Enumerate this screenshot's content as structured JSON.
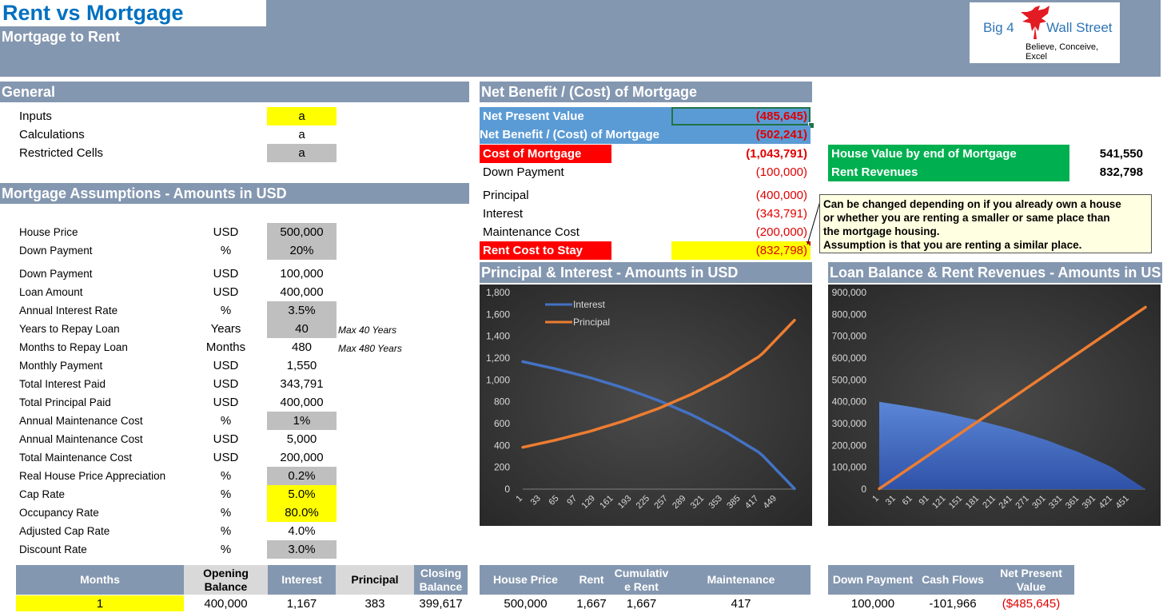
{
  "header": {
    "title": "Rent vs Mortgage",
    "subtitle": "Mortgage to Rent"
  },
  "logo": {
    "line1_left": "Big 4",
    "line1_right": "Wall Street",
    "tagline": "Believe, Conceive, Excel",
    "icon": "eagle-icon"
  },
  "general": {
    "title": "General",
    "legend": [
      {
        "label": "Inputs",
        "value": "a",
        "style": "yellow"
      },
      {
        "label": "Calculations",
        "value": "a",
        "style": "plain"
      },
      {
        "label": "Restricted Cells",
        "value": "a",
        "style": "gray"
      }
    ]
  },
  "assumptions": {
    "title": "Mortgage Assumptions - Amounts in USD",
    "rows": [
      {
        "label": "House Price",
        "unit": "USD",
        "value": "500,000",
        "style": "gray",
        "note": ""
      },
      {
        "label": "Down Payment",
        "unit": "%",
        "value": "20%",
        "style": "gray",
        "note": ""
      },
      {
        "label": "Down Payment",
        "unit": "USD",
        "value": "100,000",
        "style": "plain",
        "note": ""
      },
      {
        "label": "Loan Amount",
        "unit": "USD",
        "value": "400,000",
        "style": "plain",
        "note": ""
      },
      {
        "label": "Annual Interest Rate",
        "unit": "%",
        "value": "3.5%",
        "style": "gray",
        "note": ""
      },
      {
        "label": "Years to Repay Loan",
        "unit": "Years",
        "value": "40",
        "style": "gray",
        "note": "Max 40 Years"
      },
      {
        "label": "Months to Repay Loan",
        "unit": "Months",
        "value": "480",
        "style": "plain",
        "note": "Max 480 Years"
      },
      {
        "label": "Monthly Payment",
        "unit": "USD",
        "value": "1,550",
        "style": "plain",
        "note": ""
      },
      {
        "label": "Total Interest Paid",
        "unit": "USD",
        "value": "343,791",
        "style": "plain",
        "note": ""
      },
      {
        "label": "Total Principal Paid",
        "unit": "USD",
        "value": "400,000",
        "style": "plain",
        "note": ""
      },
      {
        "label": "Annual Maintenance Cost",
        "unit": "%",
        "value": "1%",
        "style": "gray",
        "note": ""
      },
      {
        "label": "Annual Maintenance Cost",
        "unit": "USD",
        "value": "5,000",
        "style": "plain",
        "note": ""
      },
      {
        "label": "Total Maintenance Cost",
        "unit": "USD",
        "value": "200,000",
        "style": "plain",
        "note": ""
      },
      {
        "label": "Real House Price Appreciation",
        "unit": "%",
        "value": "0.2%",
        "style": "gray",
        "note": ""
      },
      {
        "label": "Cap Rate",
        "unit": "%",
        "value": "5.0%",
        "style": "yellow",
        "note": ""
      },
      {
        "label": "Occupancy Rate",
        "unit": "%",
        "value": "80.0%",
        "style": "yellow",
        "note": ""
      },
      {
        "label": "Adjusted Cap Rate",
        "unit": "%",
        "value": "4.0%",
        "style": "plain",
        "note": ""
      },
      {
        "label": "Discount Rate",
        "unit": "%",
        "value": "3.0%",
        "style": "gray",
        "note": ""
      }
    ]
  },
  "net_benefit": {
    "title": "Net Benefit / (Cost) of Mortgage",
    "npv_label": "Net Present Value",
    "npv_value": "(485,645)",
    "net_label": "Net Benefit / (Cost) of Mortgage",
    "net_value": "(502,241)",
    "cost_label": "Cost of Mortgage",
    "cost_value": "(1,043,791)",
    "down_label": "Down Payment",
    "down_value": "(100,000)",
    "principal_label": "Principal",
    "principal_value": "(400,000)",
    "interest_label": "Interest",
    "interest_value": "(343,791)",
    "maint_label": "Maintenance Cost",
    "maint_value": "(200,000)",
    "rent_label": "Rent Cost to Stay",
    "rent_value": "(832,798)"
  },
  "summary": {
    "house_value_label": "House Value by end of Mortgage",
    "house_value": "541,550",
    "rent_rev_label": "Rent Revenues",
    "rent_rev": "832,798"
  },
  "comment": {
    "line1": "Can be changed depending on if you already own a house",
    "line2": "or whether you are renting a smaller or same place than",
    "line3": "the mortgage housing.",
    "line4": "Assumption is that you are renting a similar place."
  },
  "colors": {
    "band": "#8497B0",
    "interest": "#4472C4",
    "principal": "#ED7D31",
    "green": "#00B050",
    "red": "#FF0000",
    "yellow": "#FFFF00"
  },
  "chart_data": [
    {
      "type": "line",
      "title": "Principal & Interest - Amounts in USD",
      "x": [
        1,
        33,
        65,
        97,
        129,
        161,
        193,
        225,
        257,
        289,
        321,
        353,
        385,
        417,
        449
      ],
      "x_domain": [
        1,
        480
      ],
      "ylim": [
        0,
        1800
      ],
      "yticks": [
        0,
        200,
        400,
        600,
        800,
        1000,
        1200,
        1400,
        1600,
        1800
      ],
      "ytick_labels": [
        "0",
        "200",
        "400",
        "600",
        "800",
        "1,000",
        "1,200",
        "1,400",
        "1,600",
        "1,800"
      ],
      "legend_position": "top-left",
      "series": [
        {
          "name": "Interest",
          "color": "#4472C4",
          "points": [
            [
              1,
              1167
            ],
            [
              60,
              1100
            ],
            [
              120,
              1020
            ],
            [
              180,
              925
            ],
            [
              240,
              812
            ],
            [
              300,
              678
            ],
            [
              360,
              518
            ],
            [
              420,
              328
            ],
            [
              480,
              4
            ]
          ]
        },
        {
          "name": "Principal",
          "color": "#ED7D31",
          "points": [
            [
              1,
              383
            ],
            [
              60,
              450
            ],
            [
              120,
              530
            ],
            [
              180,
              625
            ],
            [
              240,
              738
            ],
            [
              300,
              872
            ],
            [
              360,
              1032
            ],
            [
              420,
              1222
            ],
            [
              480,
              1546
            ]
          ]
        }
      ]
    },
    {
      "type": "area",
      "title": "Loan Balance & Rent Revenues - Amounts in US",
      "x": [
        1,
        31,
        61,
        91,
        121,
        151,
        181,
        211,
        241,
        271,
        301,
        331,
        361,
        391,
        421,
        451
      ],
      "x_domain": [
        1,
        480
      ],
      "ylim": [
        0,
        900000
      ],
      "yticks": [
        0,
        100000,
        200000,
        300000,
        400000,
        500000,
        600000,
        700000,
        800000,
        900000
      ],
      "ytick_labels": [
        "0",
        "100,000",
        "200,000",
        "300,000",
        "400,000",
        "500,000",
        "600,000",
        "700,000",
        "800,000",
        "900,000"
      ],
      "series": [
        {
          "name": "",
          "kind": "area",
          "color": "#4472C4",
          "points": [
            [
              1,
              399617
            ],
            [
              60,
              376000
            ],
            [
              120,
              348000
            ],
            [
              180,
              314000
            ],
            [
              240,
              274000
            ],
            [
              300,
              226000
            ],
            [
              360,
              169000
            ],
            [
              420,
              100000
            ],
            [
              480,
              0
            ]
          ]
        },
        {
          "name": "",
          "kind": "line",
          "color": "#ED7D31",
          "points": [
            [
              1,
              1667
            ],
            [
              480,
              832798
            ]
          ]
        }
      ]
    }
  ],
  "schedule": {
    "headers_left": [
      "Months",
      "Opening Balance",
      "Interest",
      "Principal",
      "Closing Balance"
    ],
    "row_left": [
      "1",
      "400,000",
      "1,167",
      "383",
      "399,617"
    ],
    "headers_mid": [
      "House Price",
      "Rent",
      "Cumulativ e Rent",
      "Maintenance"
    ],
    "row_mid": [
      "500,000",
      "1,667",
      "1,667",
      "417"
    ],
    "headers_right": [
      "Down Payment",
      "Cash Flows",
      "Net Present Value"
    ],
    "row_right": [
      "100,000",
      "-101,966",
      "($485,645)"
    ]
  }
}
